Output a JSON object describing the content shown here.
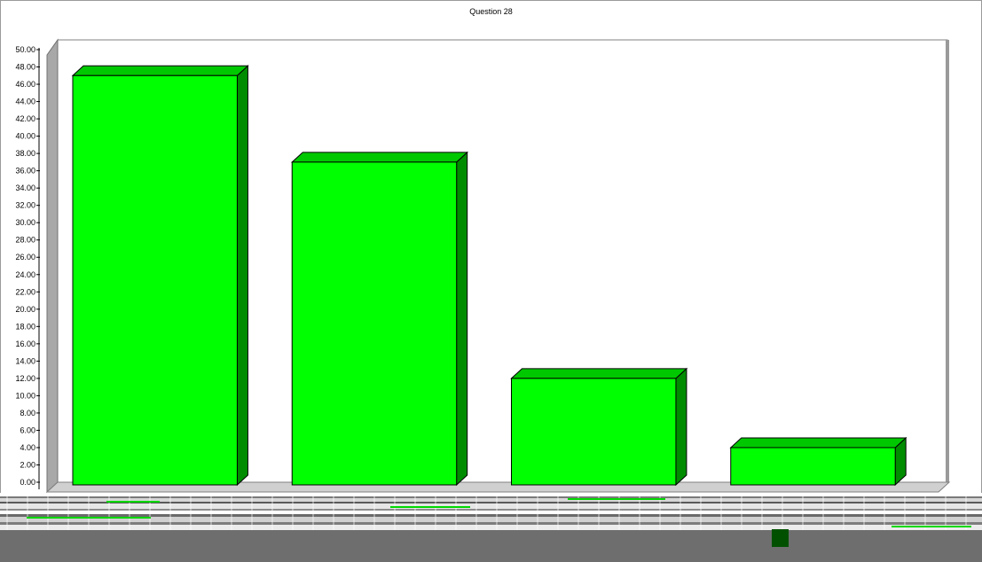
{
  "chart_data": {
    "type": "bar",
    "title": "Question 28",
    "categories": [
      "",
      "",
      "",
      ""
    ],
    "values": [
      47,
      37,
      12,
      4
    ],
    "ylim": [
      0,
      50
    ],
    "yticks": [
      0,
      2,
      4,
      6,
      8,
      10,
      12,
      14,
      16,
      18,
      20,
      22,
      24,
      26,
      28,
      30,
      32,
      34,
      36,
      38,
      40,
      42,
      44,
      46,
      48,
      50
    ],
    "ytick_labels": [
      "0.00",
      "2.00",
      "4.00",
      "6.00",
      "8.00",
      "10.00",
      "12.00",
      "14.00",
      "16.00",
      "18.00",
      "20.00",
      "22.00",
      "24.00",
      "26.00",
      "28.00",
      "30.00",
      "32.00",
      "34.00",
      "36.00",
      "38.00",
      "40.00",
      "42.00",
      "44.00",
      "46.00",
      "48.00",
      "50.00"
    ],
    "grid": false,
    "style": "3d",
    "colors": {
      "bar_front": "#00ff00",
      "bar_top": "#00c800",
      "bar_side": "#008c00",
      "wall": "#ffffff",
      "wall_side": "#a8a8a8",
      "floor": "#d0d0d0"
    }
  }
}
